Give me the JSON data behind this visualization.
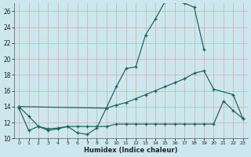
{
  "xlabel": "Humidex (Indice chaleur)",
  "bg_color": "#cce8ee",
  "grid_color": "#b0d8e0",
  "line_color": "#1a5f5a",
  "xlim": [
    -0.5,
    23.5
  ],
  "ylim": [
    10,
    27
  ],
  "yticks": [
    10,
    12,
    14,
    16,
    18,
    20,
    22,
    24,
    26
  ],
  "xticks": [
    0,
    1,
    2,
    3,
    4,
    5,
    6,
    7,
    8,
    9,
    10,
    11,
    12,
    13,
    14,
    15,
    16,
    17,
    18,
    19,
    20,
    21,
    22,
    23
  ],
  "line1_x": [
    0,
    1,
    2,
    3,
    4,
    5,
    6,
    7,
    8,
    10,
    11,
    12,
    13,
    14,
    15,
    16,
    17,
    18,
    19
  ],
  "line1_y": [
    14.0,
    12.8,
    11.5,
    11.0,
    11.2,
    11.5,
    10.7,
    10.5,
    11.3,
    16.5,
    18.8,
    19.0,
    23.0,
    25.0,
    27.2,
    27.2,
    27.0,
    26.5,
    21.2
  ],
  "line2_x": [
    0,
    9,
    10,
    11,
    12,
    13,
    14,
    15,
    16,
    17,
    18,
    19,
    20,
    22,
    23
  ],
  "line2_y": [
    14.0,
    13.8,
    14.2,
    14.5,
    15.0,
    15.5,
    16.0,
    16.5,
    17.0,
    17.5,
    18.2,
    18.5,
    16.2,
    15.5,
    12.5
  ],
  "line3_x": [
    0,
    1,
    2,
    3,
    4,
    5,
    6,
    7,
    8,
    9,
    10,
    11,
    12,
    13,
    14,
    15,
    16,
    17,
    18,
    19,
    20,
    21,
    22,
    23
  ],
  "line3_y": [
    13.8,
    11.0,
    11.5,
    11.2,
    11.3,
    11.5,
    11.5,
    11.5,
    11.5,
    11.5,
    11.8,
    11.8,
    11.8,
    11.8,
    11.8,
    11.8,
    11.8,
    11.8,
    11.8,
    11.8,
    11.8,
    14.7,
    13.5,
    12.5
  ]
}
